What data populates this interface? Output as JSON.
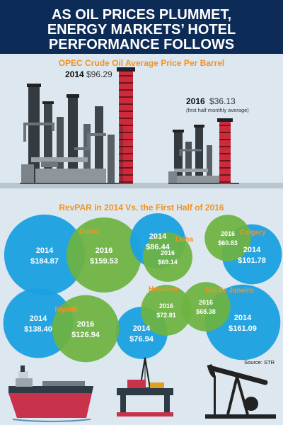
{
  "header": {
    "title_lines": [
      "AS OIL PRICES PLUMMET,",
      "ENERGY MARKETS’ HOTEL",
      "PERFORMANCE FOLLOWS"
    ]
  },
  "oil_section": {
    "title": "OPEC Crude Oil Average Price Per Barrel",
    "year_2014": "2014",
    "price_2014": "$96.29",
    "year_2016": "2016",
    "price_2016": "$36.13",
    "note_2016": "(first half monthly average)"
  },
  "revpar_section": {
    "title": "RevPAR in 2014 Vs. the First Half of 2016"
  },
  "source": "Source: STR",
  "icons": [
    "refinery-2014-icon",
    "refinery-2016-icon",
    "tanker-ship-icon",
    "oil-rig-icon",
    "pumpjack-icon"
  ],
  "colors": {
    "header_bg": "#0d2b57",
    "title_bg": "#0e4c8c",
    "accent_orange": "#f4921f",
    "bubble_2014": "#1aa0e0",
    "bubble_2016": "#6cb33f",
    "chimney_red": "#d3243c"
  },
  "chart_data": [
    {
      "type": "bar",
      "title": "OPEC Crude Oil Average Price Per Barrel",
      "categories": [
        "2014",
        "2016"
      ],
      "values": [
        96.29,
        36.13
      ],
      "value_labels": [
        "$96.29",
        "$36.13"
      ],
      "annotations": [
        "(first half monthly average)"
      ]
    },
    {
      "type": "scatter",
      "title": "RevPAR in 2014 Vs. the First Half of 2016",
      "categories": [
        "Dubai",
        "Doha",
        "Calgary",
        "Houston",
        "Rio de Janeiro",
        "Riyadh"
      ],
      "series": [
        {
          "name": "2014",
          "values": [
            184.87,
            86.44,
            101.78,
            76.94,
            161.09,
            138.4
          ],
          "labels": [
            "$184.87",
            "$86.44",
            "$101.78",
            "$76.94",
            "$161.09",
            "$138.40"
          ]
        },
        {
          "name": "2016",
          "values": [
            159.53,
            69.14,
            60.83,
            72.81,
            68.38,
            126.94
          ],
          "labels": [
            "$159.53",
            "$69.14",
            "$60.83",
            "$72.81",
            "$68.38",
            "$126.94"
          ]
        }
      ]
    }
  ]
}
